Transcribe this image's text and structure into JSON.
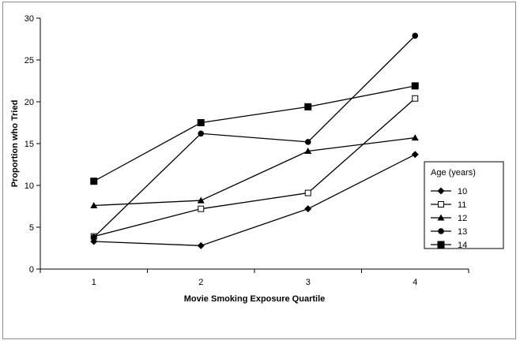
{
  "chart_data": {
    "type": "line",
    "title": "",
    "xlabel": "Movie Smoking Exposure Quartile",
    "ylabel": "Proportion who Tried",
    "categories": [
      "1",
      "2",
      "3",
      "4"
    ],
    "ylim": [
      0,
      30
    ],
    "y_ticks": [
      "0",
      "5",
      "10",
      "15",
      "20",
      "25",
      "30"
    ],
    "grid": false,
    "legend": {
      "title": "Age (years)",
      "placement": "right"
    },
    "series": [
      {
        "name": "10",
        "marker": "diamond",
        "values": [
          3.3,
          2.8,
          7.2,
          13.7
        ]
      },
      {
        "name": "11",
        "marker": "open-square",
        "values": [
          3.9,
          7.2,
          9.1,
          20.4
        ]
      },
      {
        "name": "12",
        "marker": "triangle",
        "values": [
          7.6,
          8.2,
          14.1,
          15.7
        ]
      },
      {
        "name": "13",
        "marker": "circle",
        "values": [
          3.8,
          16.2,
          15.2,
          27.9
        ]
      },
      {
        "name": "14",
        "marker": "square",
        "values": [
          10.5,
          17.5,
          19.4,
          21.9
        ]
      }
    ]
  }
}
